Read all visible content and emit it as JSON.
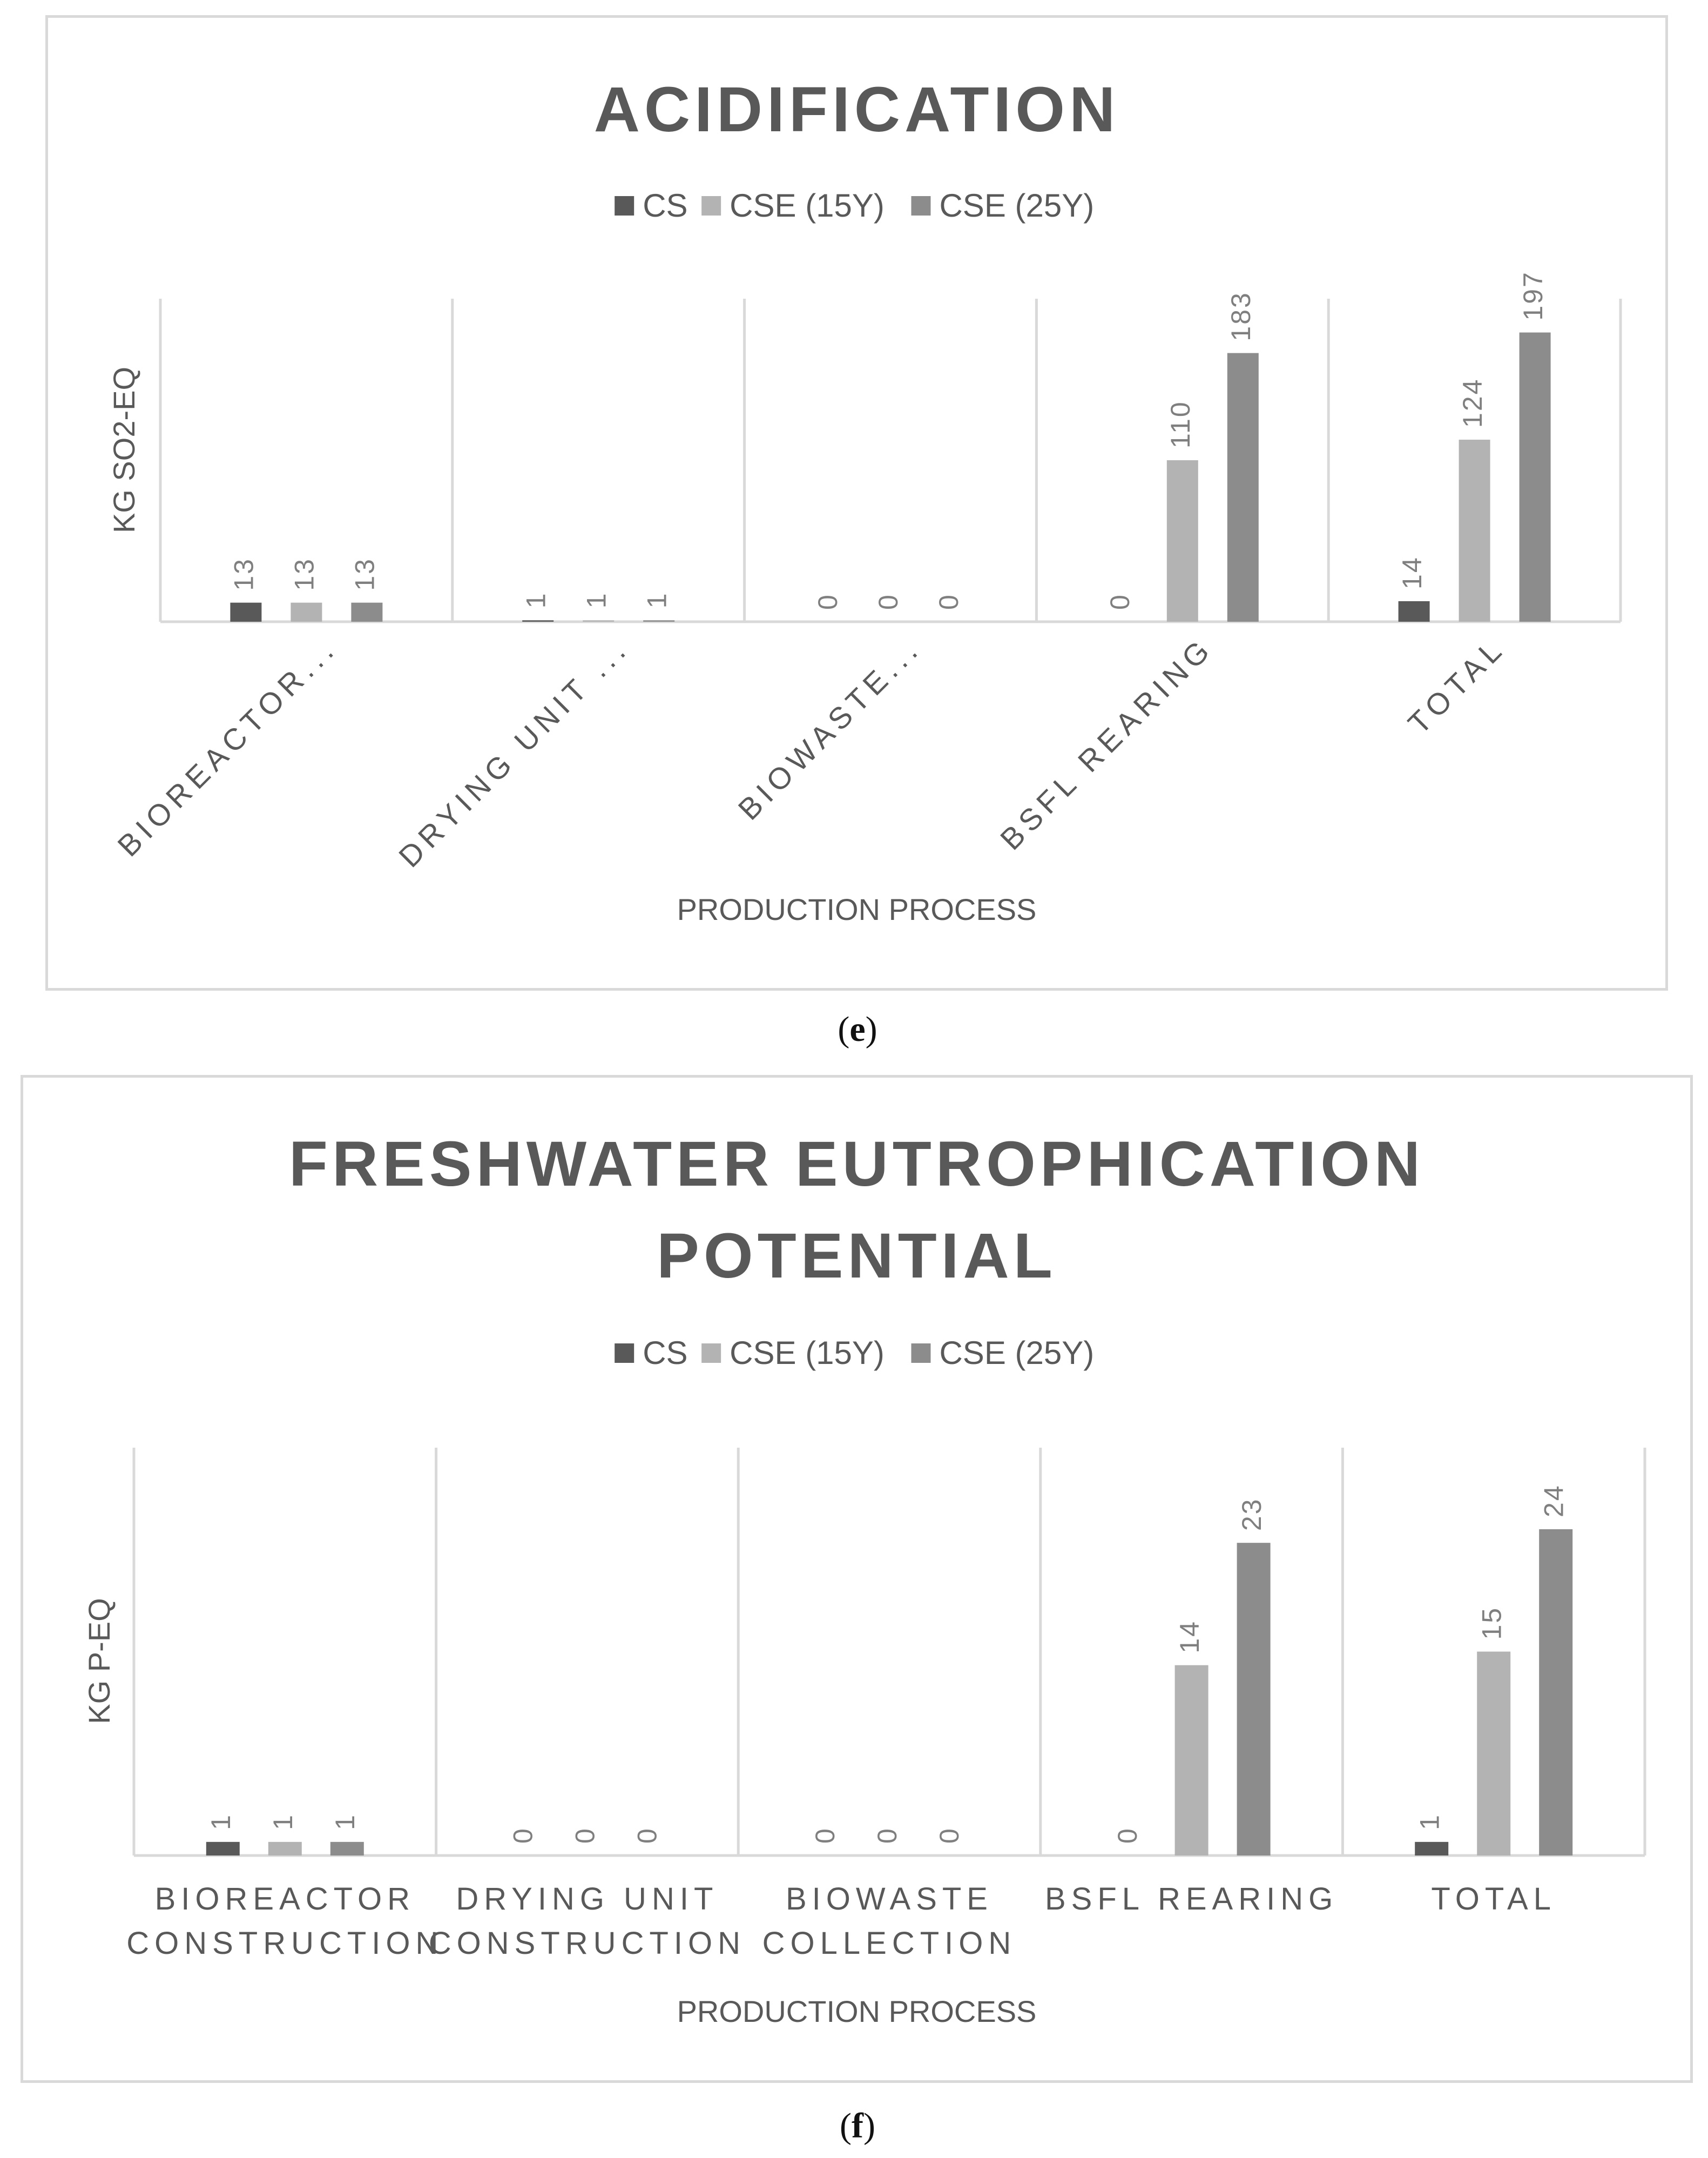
{
  "colors": {
    "series": [
      "#595959",
      "#b3b3b3",
      "#8c8c8c"
    ],
    "grid": "#d9d9d9",
    "text": "#595959",
    "value_label": "#7f7f7f"
  },
  "panels": [
    {
      "label": "e",
      "label_prefix": "(",
      "label_suffix": ")"
    },
    {
      "label": "f",
      "label_prefix": "(",
      "label_suffix": ")"
    }
  ],
  "chart_data": [
    {
      "type": "bar",
      "title": [
        "ACIDIFICATION"
      ],
      "xlabel": "PRODUCTION PROCESS",
      "ylabel": "KG SO2-EQ",
      "ylim": [
        0,
        220
      ],
      "grid": false,
      "legend_position": "top",
      "category_label_style": "rotated",
      "categories": [
        [
          "BIOREACTOR..."
        ],
        [
          "DRYING UNIT ..."
        ],
        [
          "BIOWASTE..."
        ],
        [
          "BSFL REARING"
        ],
        [
          "TOTAL"
        ]
      ],
      "series": [
        {
          "name": "CS",
          "values": [
            13,
            1,
            0,
            0,
            14
          ]
        },
        {
          "name": "CSE (15Y)",
          "values": [
            13,
            1,
            0,
            110,
            124
          ]
        },
        {
          "name": "CSE (25Y)",
          "values": [
            13,
            1,
            0,
            183,
            197
          ]
        }
      ]
    },
    {
      "type": "bar",
      "title": [
        "FRESHWATER EUTROPHICATION",
        "POTENTIAL"
      ],
      "xlabel": "PRODUCTION PROCESS",
      "ylabel": "KG P-EQ",
      "ylim": [
        0,
        30
      ],
      "grid": false,
      "legend_position": "top",
      "category_label_style": "horizontal",
      "categories": [
        [
          "BIOREACTOR",
          "CONSTRUCTION"
        ],
        [
          "DRYING UNIT",
          "CONSTRUCTION"
        ],
        [
          "BIOWASTE",
          "COLLECTION"
        ],
        [
          "BSFL REARING"
        ],
        [
          "TOTAL"
        ]
      ],
      "series": [
        {
          "name": "CS",
          "values": [
            1,
            0,
            0,
            0,
            1
          ]
        },
        {
          "name": "CSE (15Y)",
          "values": [
            1,
            0,
            0,
            14,
            15
          ]
        },
        {
          "name": "CSE (25Y)",
          "values": [
            1,
            0,
            0,
            23,
            24
          ]
        }
      ]
    }
  ]
}
